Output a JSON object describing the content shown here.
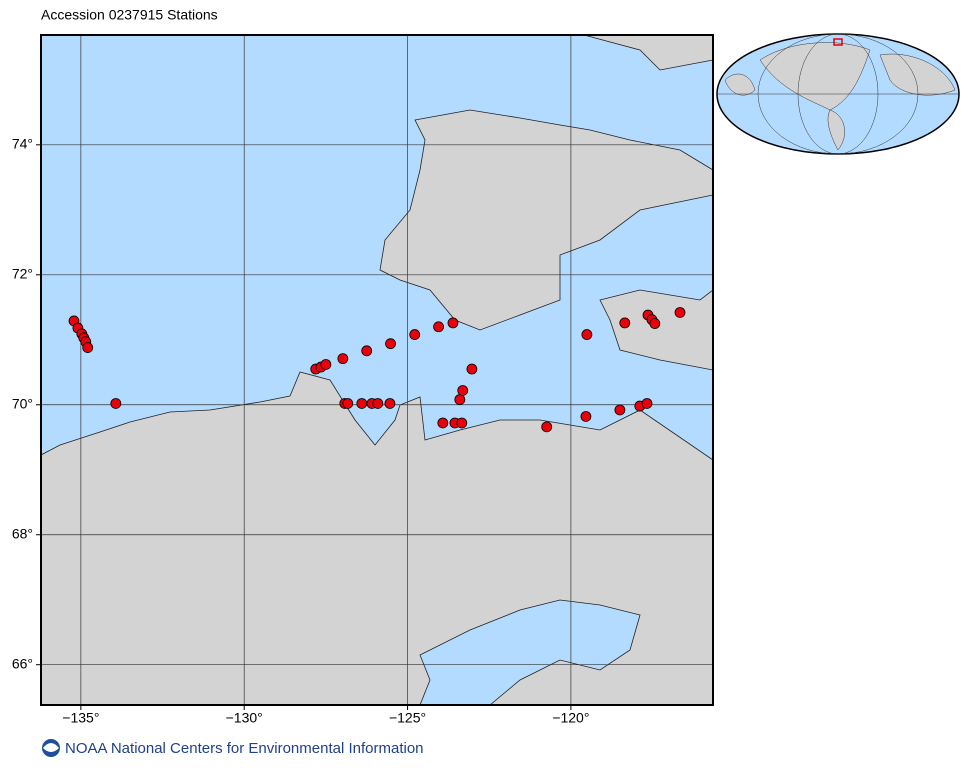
{
  "chart_data": {
    "type": "scatter",
    "title": "Accession 0237915 Stations",
    "x": [
      -135.21,
      -135.09,
      -134.97,
      -134.91,
      -134.85,
      -134.79,
      -133.93,
      -127.81,
      -127.65,
      -127.5,
      -126.98,
      -126.25,
      -125.52,
      -124.78,
      -124.05,
      -123.61,
      -126.92,
      -126.83,
      -126.4,
      -126.09,
      -125.91,
      -125.54,
      -123.92,
      -123.55,
      -123.34,
      -123.4,
      -123.31,
      -123.03,
      -120.74,
      -119.54,
      -119.51,
      -118.5,
      -118.35,
      -117.89,
      -117.67,
      -117.64,
      -117.52,
      -117.43,
      -116.66
    ],
    "series": [
      {
        "color": "#e8000b",
        "values": [
          71.29,
          71.18,
          71.09,
          71.03,
          70.97,
          70.88,
          70.02,
          70.55,
          70.58,
          70.62,
          70.71,
          70.83,
          70.94,
          71.08,
          71.2,
          71.26,
          70.02,
          70.02,
          70.02,
          70.02,
          70.02,
          70.02,
          69.72,
          69.72,
          69.72,
          70.08,
          70.22,
          70.55,
          69.66,
          69.82,
          71.08,
          69.92,
          71.26,
          69.98,
          70.02,
          71.38,
          71.31,
          71.25,
          71.42
        ]
      }
    ],
    "xlim": [
      -136.22,
      -115.65
    ],
    "ylim": [
      65.38,
      75.69
    ],
    "xticks": [
      {
        "value": -135,
        "label": "−135°"
      },
      {
        "value": -130,
        "label": "−130°"
      },
      {
        "value": -125,
        "label": "−125°"
      },
      {
        "value": -120,
        "label": "−120°"
      }
    ],
    "yticks": [
      {
        "value": 66,
        "label": "66°"
      },
      {
        "value": 68,
        "label": "68°"
      },
      {
        "value": 70,
        "label": "70°"
      },
      {
        "value": 72,
        "label": "72°"
      },
      {
        "value": 74,
        "label": "74°"
      }
    ],
    "grid": true
  },
  "footer": {
    "text": "NOAA National Centers for Environmental Information"
  }
}
